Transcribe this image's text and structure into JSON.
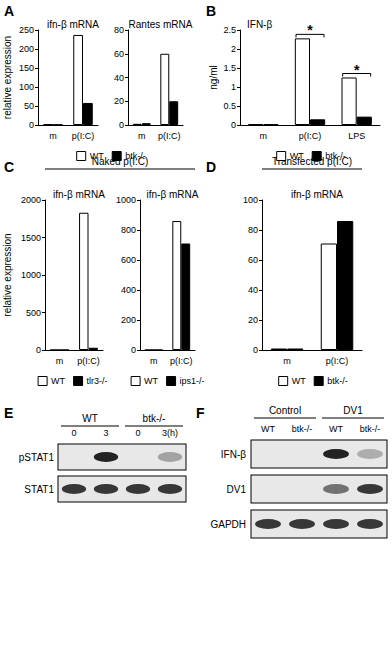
{
  "chart_data": [
    {
      "panel": "A",
      "type": "bar",
      "title": "ifn-β mRNA",
      "y_label": "relative expression",
      "categories": [
        "m",
        "p(I:C)"
      ],
      "series": [
        {
          "name": "WT",
          "color": "#ffffff",
          "values": [
            2,
            237
          ]
        },
        {
          "name": "btk-/-",
          "color": "#000000",
          "values": [
            1,
            58
          ]
        }
      ],
      "ylim": [
        0,
        250
      ],
      "yticks": [
        0,
        50,
        100,
        150,
        200,
        250
      ],
      "legend": "bottom",
      "grid": false
    },
    {
      "type": "bar",
      "title": "Rantes mRNA",
      "categories": [
        "m",
        "p(I:C)"
      ],
      "series": [
        {
          "name": "WT",
          "color": "#ffffff",
          "values": [
            1,
            60
          ]
        },
        {
          "name": "btk-/-",
          "color": "#000000",
          "values": [
            1.5,
            20
          ]
        }
      ],
      "ylim": [
        0,
        80
      ],
      "yticks": [
        0,
        20,
        40,
        60,
        80
      ],
      "grid": false
    },
    {
      "panel": "B",
      "type": "bar",
      "title": "IFN-β",
      "y_label": "ng/ml",
      "categories": [
        "m",
        "p(I:C)",
        "LPS"
      ],
      "series": [
        {
          "name": "WT",
          "color": "#ffffff",
          "values": [
            0.02,
            2.28,
            1.25
          ]
        },
        {
          "name": "btk-/-",
          "color": "#000000",
          "values": [
            0.02,
            0.15,
            0.22
          ]
        }
      ],
      "ylim": [
        0,
        2.5
      ],
      "yticks": [
        0,
        0.5,
        1,
        1.5,
        2,
        2.5
      ],
      "annotations": [
        {
          "text": "*",
          "category": "p(I:C)"
        },
        {
          "text": "*",
          "category": "LPS"
        }
      ],
      "legend": "bottom",
      "grid": false
    },
    {
      "panel": "C",
      "type": "bar",
      "subtitle": "Naked p(I:C)",
      "title": "ifn-β mRNA",
      "y_label": "relative expression",
      "categories": [
        "m",
        "p(I:C)"
      ],
      "series": [
        {
          "name": "WT",
          "color": "#ffffff",
          "values": [
            0,
            1830
          ]
        },
        {
          "name": "tlr3-/-",
          "color": "#000000",
          "values": [
            0,
            30
          ]
        }
      ],
      "ylim": [
        0,
        2000
      ],
      "yticks": [
        0,
        500,
        1000,
        1500,
        2000
      ],
      "legend": "bottom",
      "grid": false
    },
    {
      "type": "bar",
      "title": "ifn-β mRNA",
      "categories": [
        "m",
        "p(I:C)"
      ],
      "series": [
        {
          "name": "WT",
          "color": "#ffffff",
          "values": [
            0,
            860
          ]
        },
        {
          "name": "ips1-/-",
          "color": "#000000",
          "values": [
            0,
            710
          ]
        }
      ],
      "ylim": [
        0,
        1000
      ],
      "yticks": [
        0,
        200,
        400,
        600,
        800,
        1000
      ],
      "legend": "bottom",
      "grid": false
    },
    {
      "panel": "D",
      "type": "bar",
      "subtitle": "Transfected p(I:C)",
      "title": "ifn-β mRNA",
      "categories": [
        "m",
        "p(I:C)"
      ],
      "series": [
        {
          "name": "WT",
          "color": "#ffffff",
          "values": [
            1,
            71
          ]
        },
        {
          "name": "btk-/-",
          "color": "#000000",
          "values": [
            1,
            86
          ]
        }
      ],
      "ylim": [
        0,
        100
      ],
      "yticks": [
        0,
        20,
        40,
        60,
        80,
        100
      ],
      "legend": "bottom",
      "grid": false
    }
  ],
  "blots": [
    {
      "panel": "E",
      "groups": [
        {
          "label": "WT",
          "lanes": [
            "0",
            "3"
          ]
        },
        {
          "label": "btk-/-",
          "lanes": [
            "0",
            "3(h)"
          ]
        }
      ],
      "rows": [
        {
          "label": "pSTAT1",
          "bands": [
            0,
            1,
            0,
            0.35
          ]
        },
        {
          "label": "STAT1",
          "bands": [
            0.9,
            0.9,
            0.9,
            0.9
          ]
        }
      ]
    },
    {
      "panel": "F",
      "groups": [
        {
          "label": "Control",
          "lanes": [
            "WT",
            "btk-/-"
          ]
        },
        {
          "label": "DV1",
          "lanes": [
            "WT",
            "btk-/-"
          ]
        }
      ],
      "rows": [
        {
          "label": "IFN-β",
          "bands": [
            0,
            0,
            1,
            0.3
          ]
        },
        {
          "label": "DV1",
          "bands": [
            0,
            0,
            0.6,
            0.9
          ]
        },
        {
          "label": "GAPDH",
          "bands": [
            0.9,
            0.9,
            0.9,
            0.9
          ]
        }
      ]
    }
  ]
}
